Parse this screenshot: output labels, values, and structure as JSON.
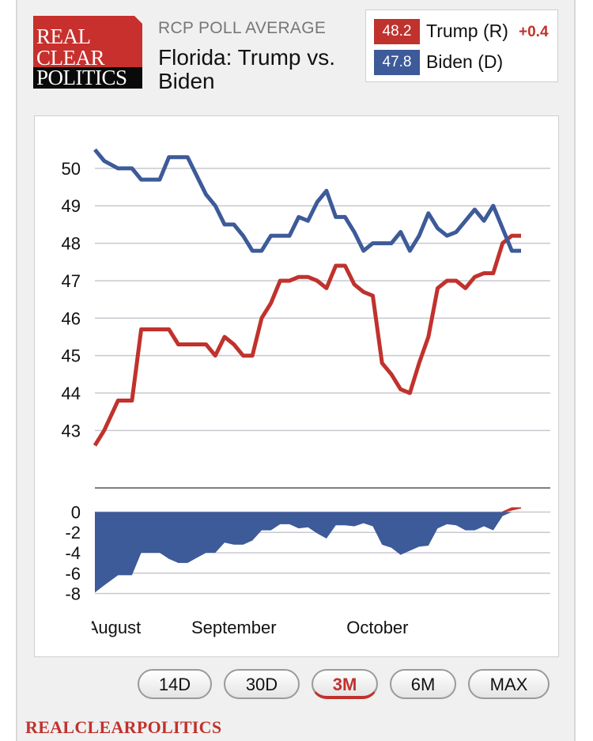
{
  "header": {
    "logo": {
      "line1": "REAL",
      "line2": "CLEAR",
      "line3": "POLITICS"
    },
    "subtitle": "RCP POLL AVERAGE",
    "title": "Florida: Trump vs. Biden"
  },
  "legend": [
    {
      "value": "48.2",
      "name": "Trump (R)",
      "change": "+0.4",
      "color": "#c0322d"
    },
    {
      "value": "47.8",
      "name": "Biden (D)",
      "change": "",
      "color": "#3d5a99"
    }
  ],
  "range_buttons": [
    {
      "label": "14D",
      "active": false
    },
    {
      "label": "30D",
      "active": false
    },
    {
      "label": "3M",
      "active": true
    },
    {
      "label": "6M",
      "active": false
    },
    {
      "label": "MAX",
      "active": false
    }
  ],
  "footer": {
    "brand": "REALCLEARPOLITICS"
  },
  "chart_data": [
    {
      "type": "line",
      "panel": "main",
      "x": [
        0,
        2,
        5,
        8,
        10,
        12,
        14,
        16,
        18,
        20,
        22,
        24,
        26,
        28,
        30,
        32,
        34,
        36,
        38,
        40,
        42,
        44,
        46,
        48,
        50,
        52,
        54,
        56,
        58,
        60,
        62,
        64,
        66,
        68,
        70,
        72,
        74,
        76,
        78,
        80,
        82,
        84,
        86,
        88,
        90,
        92
      ],
      "x_labels": {
        "0": "August",
        "30": "September",
        "61": "October"
      },
      "series": [
        {
          "name": "Trump (R)",
          "color": "#c0322d",
          "values": [
            42.6,
            43.0,
            43.8,
            43.8,
            45.7,
            45.7,
            45.7,
            45.7,
            45.3,
            45.3,
            45.3,
            45.3,
            45.0,
            45.5,
            45.3,
            45.0,
            45.0,
            46.0,
            46.4,
            47.0,
            47.0,
            47.1,
            47.1,
            47.0,
            46.8,
            47.4,
            47.4,
            46.9,
            46.7,
            46.6,
            44.8,
            44.5,
            44.1,
            44.0,
            44.8,
            45.5,
            46.8,
            47.0,
            47.0,
            46.8,
            47.1,
            47.2,
            47.2,
            48.0,
            48.2,
            48.2
          ]
        },
        {
          "name": "Biden (D)",
          "color": "#3d5a99",
          "values": [
            50.5,
            50.2,
            50.0,
            50.0,
            49.7,
            49.7,
            49.7,
            50.3,
            50.3,
            50.3,
            49.8,
            49.3,
            49.0,
            48.5,
            48.5,
            48.2,
            47.8,
            47.8,
            48.2,
            48.2,
            48.2,
            48.7,
            48.6,
            49.1,
            49.4,
            48.7,
            48.7,
            48.3,
            47.8,
            48.0,
            48.0,
            48.0,
            48.3,
            47.8,
            48.2,
            48.8,
            48.4,
            48.2,
            48.3,
            48.6,
            48.9,
            48.6,
            49.0,
            48.4,
            47.8,
            47.8
          ]
        }
      ],
      "yticks": [
        43,
        44,
        45,
        46,
        47,
        48,
        49,
        50
      ],
      "ylim": [
        42.1,
        50.8
      ],
      "grid": true
    },
    {
      "type": "area",
      "panel": "spread",
      "series": [
        {
          "name": "Spread",
          "color": "#3d5a99",
          "values": [
            -7.9,
            -7.2,
            -6.2,
            -6.2,
            -4.0,
            -4.0,
            -4.0,
            -4.6,
            -5.0,
            -5.0,
            -4.5,
            -4.0,
            -4.0,
            -3.0,
            -3.2,
            -3.2,
            -2.8,
            -1.8,
            -1.8,
            -1.2,
            -1.2,
            -1.6,
            -1.5,
            -2.1,
            -2.6,
            -1.3,
            -1.3,
            -1.4,
            -1.1,
            -1.4,
            -3.2,
            -3.5,
            -4.2,
            -3.8,
            -3.4,
            -3.3,
            -1.6,
            -1.2,
            -1.3,
            -1.8,
            -1.8,
            -1.4,
            -1.8,
            -0.4,
            0.4,
            0.4
          ]
        }
      ],
      "yticks": [
        0,
        -2,
        -4,
        -6,
        -8
      ],
      "ylim": [
        -8.5,
        0.5
      ],
      "grid": true
    }
  ]
}
